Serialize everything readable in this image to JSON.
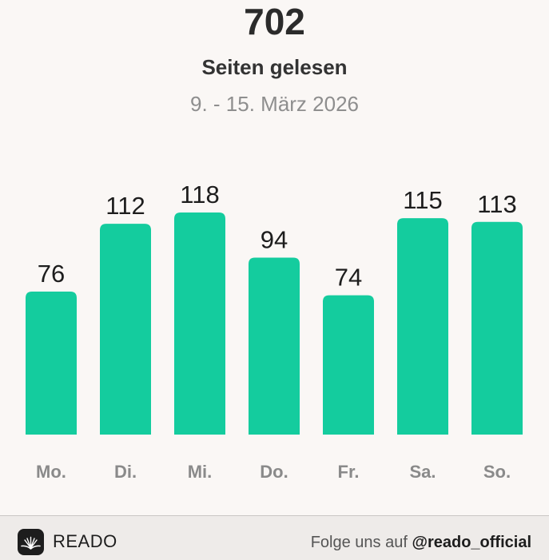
{
  "header": {
    "total": "702",
    "label": "Seiten gelesen",
    "date_range": "9. - 15. März 2026"
  },
  "chart_data": {
    "type": "bar",
    "categories": [
      "Mo.",
      "Di.",
      "Mi.",
      "Do.",
      "Fr.",
      "Sa.",
      "So."
    ],
    "values": [
      76,
      112,
      118,
      94,
      74,
      115,
      113
    ],
    "ylim": [
      0,
      118
    ],
    "grid": false,
    "bar_color": "#14cc9e"
  },
  "footer": {
    "brand": "READO",
    "follow_prefix": "Folge uns auf",
    "handle": "@reado_official"
  },
  "colors": {
    "background": "#faf7f5",
    "footer_background": "#eeebe9",
    "accent": "#14cc9e"
  },
  "icons": {
    "logo": "open-book-icon"
  }
}
